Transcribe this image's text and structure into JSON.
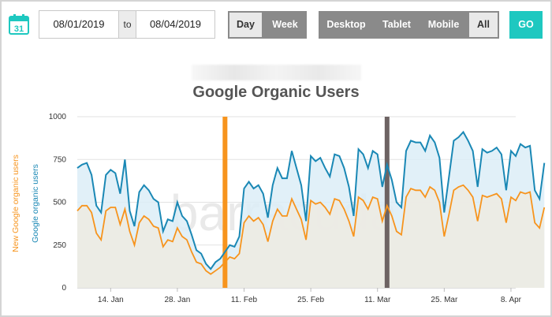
{
  "toolbar": {
    "calendar_icon_day": "31",
    "date_from": "08/01/2019",
    "to_label": "to",
    "date_to": "08/04/2019",
    "granularity": [
      {
        "label": "Day",
        "active": true
      },
      {
        "label": "Week",
        "active": false
      }
    ],
    "devices": [
      {
        "label": "Desktop",
        "active": false
      },
      {
        "label": "Tablet",
        "active": false
      },
      {
        "label": "Mobile",
        "active": false
      },
      {
        "label": "All",
        "active": true
      }
    ],
    "go_label": "GO",
    "accent_color": "#1ec8c0"
  },
  "chart_data": {
    "type": "area",
    "title": "Google Organic Users",
    "ylabel_series_1": "Google organic users",
    "ylabel_series_2": "New Google organic users",
    "ylim": [
      0,
      1000
    ],
    "y_ticks": [
      "0",
      "250",
      "500",
      "750",
      "1000"
    ],
    "x_ticks": [
      "14. Jan",
      "28. Jan",
      "11. Feb",
      "25. Feb",
      "11. Mar",
      "25. Mar",
      "8. Apr"
    ],
    "x_tick_days": [
      14,
      28,
      42,
      56,
      70,
      84,
      98
    ],
    "x_range_days": [
      7,
      99
    ],
    "grid": true,
    "watermark": "barracuda",
    "annotations": [
      {
        "day": 38,
        "color": "#f7941d",
        "kind": "vertical-marker"
      },
      {
        "day": 72,
        "color": "#6d6363",
        "kind": "vertical-marker"
      }
    ],
    "series": [
      {
        "name": "Google organic users",
        "color": "#1a88b5",
        "values": [
          700,
          720,
          730,
          660,
          480,
          440,
          660,
          690,
          670,
          550,
          750,
          450,
          360,
          560,
          600,
          570,
          520,
          500,
          330,
          400,
          390,
          500,
          420,
          390,
          310,
          220,
          200,
          140,
          110,
          150,
          170,
          210,
          250,
          240,
          300,
          580,
          620,
          580,
          600,
          550,
          410,
          600,
          700,
          640,
          640,
          800,
          700,
          600,
          390,
          770,
          740,
          760,
          700,
          650,
          780,
          770,
          700,
          590,
          420,
          810,
          780,
          700,
          800,
          780,
          590,
          720,
          630,
          500,
          470,
          800,
          860,
          850,
          850,
          800,
          890,
          850,
          760,
          440,
          650,
          860,
          880,
          910,
          860,
          800,
          590,
          810,
          790,
          800,
          820,
          780,
          570,
          800,
          770,
          840,
          820,
          830,
          570,
          520,
          730
        ],
        "start_day": 7
      },
      {
        "name": "New Google organic users",
        "color": "#f7941d",
        "values": [
          450,
          480,
          480,
          440,
          320,
          280,
          450,
          470,
          470,
          370,
          460,
          330,
          250,
          380,
          420,
          400,
          360,
          350,
          240,
          280,
          270,
          350,
          300,
          280,
          210,
          150,
          140,
          100,
          80,
          100,
          120,
          150,
          180,
          170,
          200,
          380,
          420,
          390,
          410,
          370,
          270,
          390,
          460,
          420,
          420,
          520,
          460,
          400,
          280,
          510,
          490,
          500,
          470,
          430,
          520,
          510,
          460,
          390,
          300,
          530,
          510,
          460,
          530,
          520,
          390,
          480,
          420,
          330,
          310,
          530,
          580,
          570,
          570,
          530,
          590,
          570,
          500,
          300,
          430,
          570,
          590,
          600,
          570,
          530,
          390,
          540,
          530,
          540,
          550,
          520,
          380,
          530,
          510,
          560,
          550,
          560,
          380,
          350,
          470
        ],
        "start_day": 7
      }
    ]
  }
}
